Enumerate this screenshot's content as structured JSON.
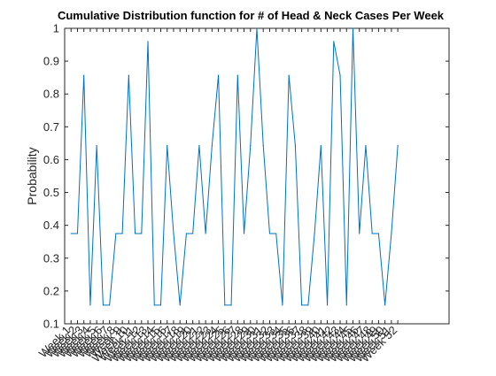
{
  "chart_data": {
    "type": "line",
    "title": "Cumulative Distribution function for # of Head & Neck Cases Per Week",
    "xlabel": "",
    "ylabel": "Probability",
    "ylim": [
      0.1,
      1
    ],
    "yticks": [
      0.1,
      0.2,
      0.3,
      0.4,
      0.5,
      0.6,
      0.7,
      0.8,
      0.9,
      1
    ],
    "ytick_labels": [
      "0.1",
      "0.2",
      "0.3",
      "0.4",
      "0.5",
      "0.6",
      "0.7",
      "0.8",
      "0.9",
      "1"
    ],
    "xlim": [
      0,
      60
    ],
    "grid": false,
    "line_color": "#0072bd",
    "categories": [
      "Week 1",
      "Week 2",
      "Week 3",
      "Week 4",
      "Week 5",
      "Week 6",
      "Week 7",
      "Week 8",
      "Week 9",
      "Week 10",
      "Week 11",
      "Week 12",
      "Week 13",
      "Week 14",
      "Week 15",
      "Week 16",
      "Week 17",
      "Week 18",
      "Week 19",
      "Week 20",
      "Week 21",
      "Week 22",
      "Week 23",
      "Week 24",
      "Week 25",
      "Week 26",
      "Week 27",
      "Week 28",
      "Week 29",
      "Week 30",
      "Week 31",
      "Week 32",
      "Week 33",
      "Week 34",
      "Week 35",
      "Week 36",
      "Week 37",
      "Week 38",
      "Week 39",
      "Week 40",
      "Week 41",
      "Week 42",
      "Week 43",
      "Week 44",
      "Week 45",
      "Week 46",
      "Week 47",
      "Week 48",
      "Week 49",
      "Week 50",
      "Week 51",
      "Week 52"
    ],
    "values": [
      0.375,
      0.375,
      0.857,
      0.157,
      0.643,
      0.157,
      0.157,
      0.375,
      0.375,
      0.857,
      0.375,
      0.375,
      0.96,
      0.157,
      0.157,
      0.643,
      0.375,
      0.157,
      0.375,
      0.375,
      0.643,
      0.375,
      0.643,
      0.857,
      0.157,
      0.157,
      0.857,
      0.375,
      0.643,
      1.0,
      0.643,
      0.375,
      0.375,
      0.157,
      0.857,
      0.643,
      0.157,
      0.157,
      0.375,
      0.643,
      0.157,
      0.96,
      0.857,
      0.157,
      1.0,
      0.375,
      0.643,
      0.375,
      0.375,
      0.157,
      0.375,
      0.643
    ]
  }
}
